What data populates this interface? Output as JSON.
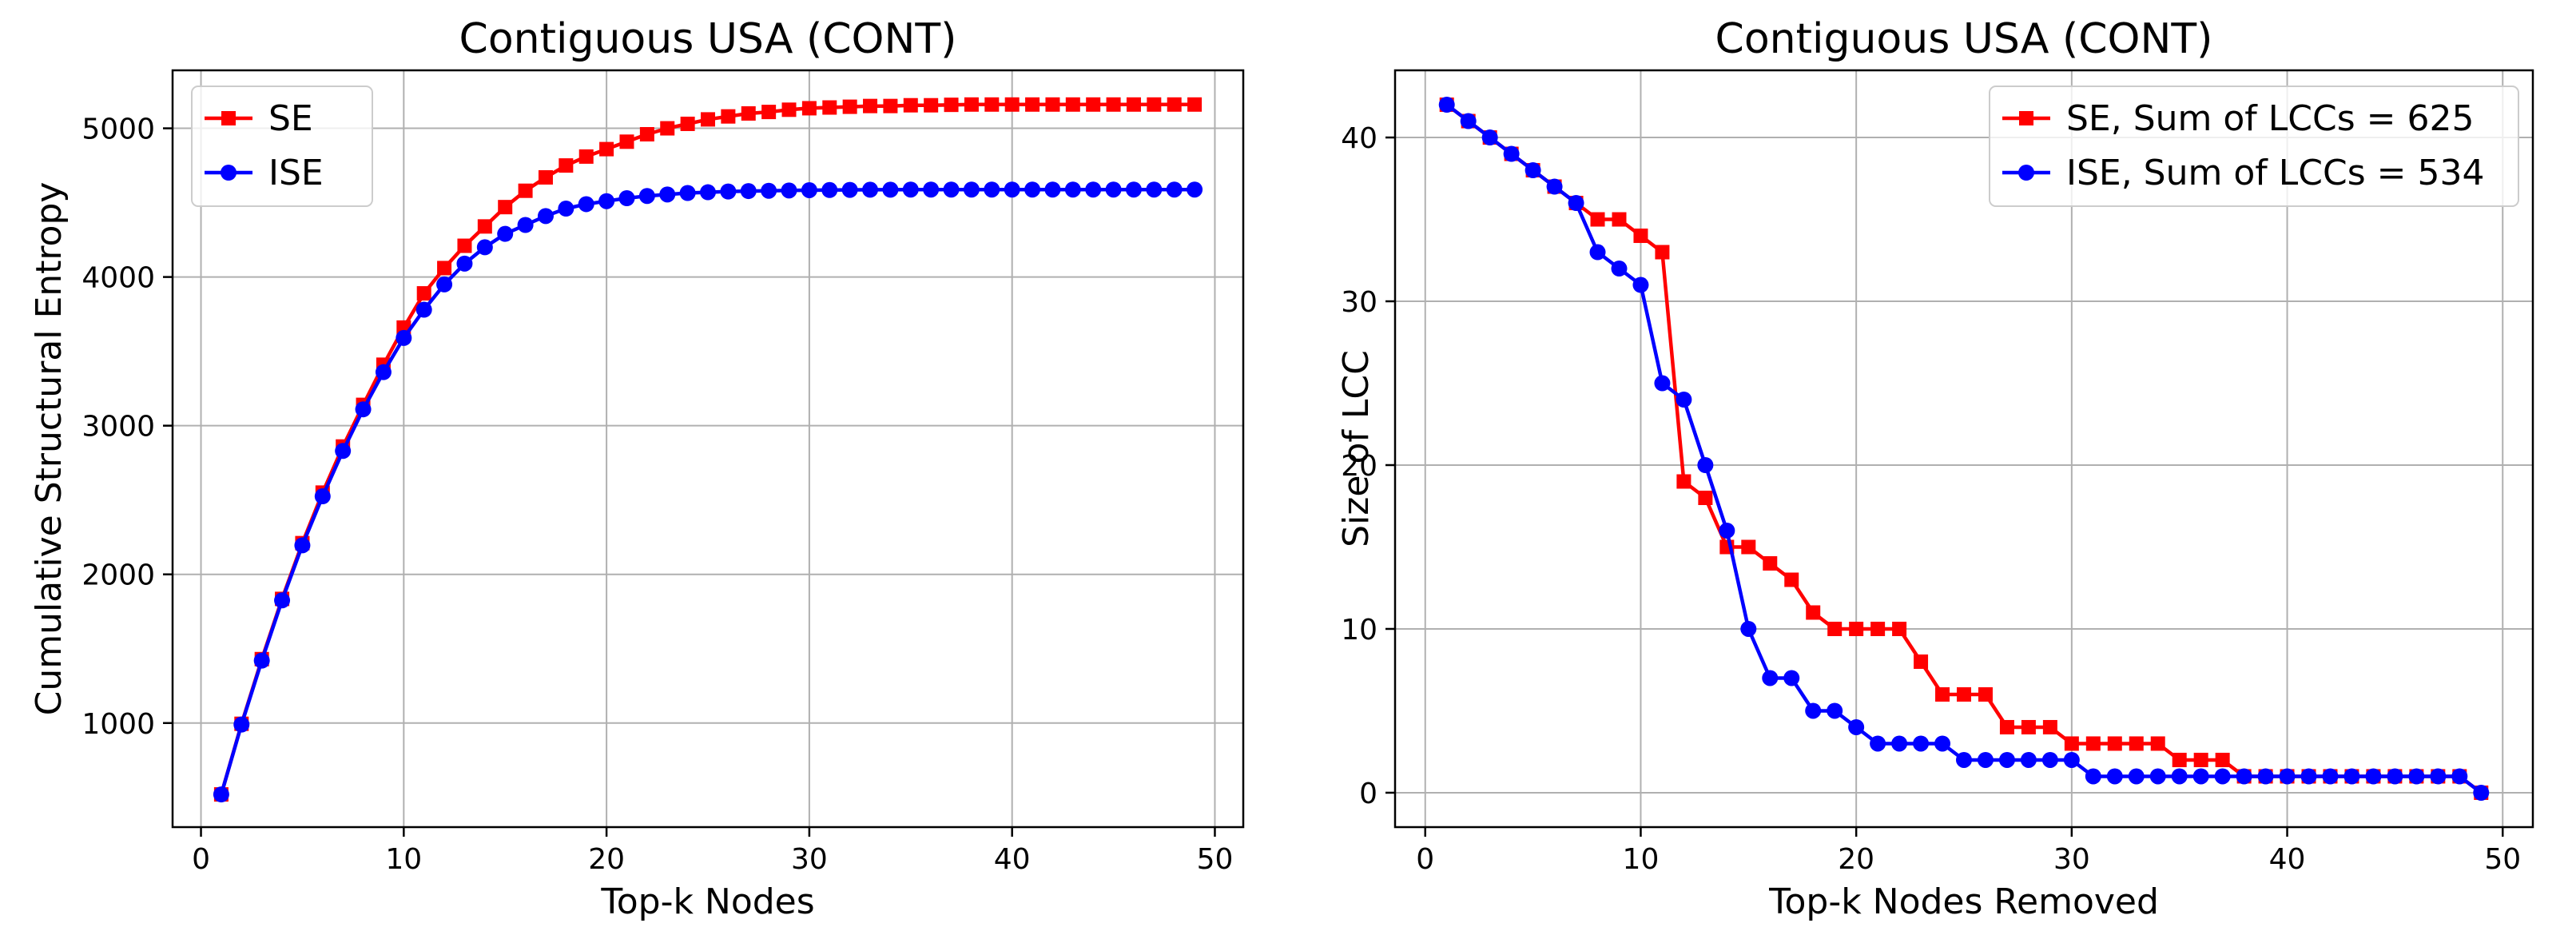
{
  "chart_data": [
    {
      "type": "line",
      "title": "Contiguous USA (CONT)",
      "xlabel": "Top-k Nodes",
      "ylabel": "Cumulative Structural Entropy",
      "xlim": [
        -1.4,
        51.4
      ],
      "ylim": [
        300,
        5390
      ],
      "xticks": [
        "0",
        "10",
        "20",
        "30",
        "40",
        "50"
      ],
      "yticks": [
        "1000",
        "2000",
        "3000",
        "4000",
        "5000"
      ],
      "grid": true,
      "legend_position": "top-left",
      "x": [
        1,
        2,
        3,
        4,
        5,
        6,
        7,
        8,
        9,
        10,
        11,
        12,
        13,
        14,
        15,
        16,
        17,
        18,
        19,
        20,
        21,
        22,
        23,
        24,
        25,
        26,
        27,
        28,
        29,
        30,
        31,
        32,
        33,
        34,
        35,
        36,
        37,
        38,
        39,
        40,
        41,
        42,
        43,
        44,
        45,
        46,
        47,
        48,
        49
      ],
      "series": [
        {
          "name": "SE",
          "color": "#ff0000",
          "marker": "square",
          "values": [
            520,
            995,
            1430,
            1835,
            2210,
            2550,
            2860,
            3140,
            3410,
            3660,
            3890,
            4060,
            4210,
            4340,
            4470,
            4580,
            4670,
            4750,
            4810,
            4860,
            4910,
            4960,
            5000,
            5030,
            5060,
            5080,
            5100,
            5110,
            5125,
            5135,
            5140,
            5145,
            5150,
            5150,
            5155,
            5155,
            5158,
            5160,
            5160,
            5160,
            5160,
            5160,
            5160,
            5160,
            5160,
            5160,
            5160,
            5160,
            5160
          ]
        },
        {
          "name": "ISE",
          "color": "#0000ff",
          "marker": "circle",
          "values": [
            520,
            990,
            1420,
            1825,
            2195,
            2525,
            2830,
            3110,
            3360,
            3590,
            3780,
            3950,
            4090,
            4200,
            4290,
            4350,
            4410,
            4460,
            4490,
            4510,
            4530,
            4545,
            4555,
            4565,
            4570,
            4575,
            4578,
            4580,
            4582,
            4584,
            4585,
            4586,
            4587,
            4587,
            4588,
            4588,
            4588,
            4588,
            4588,
            4588,
            4588,
            4588,
            4588,
            4588,
            4588,
            4588,
            4588,
            4588,
            4588
          ]
        }
      ]
    },
    {
      "type": "line",
      "title": "Contiguous USA (CONT)",
      "xlabel": "Top-k Nodes Removed",
      "ylabel": "Size of LCC",
      "xlim": [
        -1.4,
        51.4
      ],
      "ylim": [
        -2.1,
        44.1
      ],
      "xticks": [
        "0",
        "10",
        "20",
        "30",
        "40",
        "50"
      ],
      "yticks": [
        "0",
        "10",
        "20",
        "30",
        "40"
      ],
      "grid": true,
      "legend_position": "top-right",
      "x": [
        1,
        2,
        3,
        4,
        5,
        6,
        7,
        8,
        9,
        10,
        11,
        12,
        13,
        14,
        15,
        16,
        17,
        18,
        19,
        20,
        21,
        22,
        23,
        24,
        25,
        26,
        27,
        28,
        29,
        30,
        31,
        32,
        33,
        34,
        35,
        36,
        37,
        38,
        39,
        40,
        41,
        42,
        43,
        44,
        45,
        46,
        47,
        48,
        49
      ],
      "series": [
        {
          "name": "SE,  Sum of LCCs = 625",
          "color": "#ff0000",
          "marker": "square",
          "values": [
            42,
            41,
            40,
            39,
            38,
            37,
            36,
            35,
            35,
            34,
            33,
            19,
            18,
            15,
            15,
            14,
            13,
            11,
            10,
            10,
            10,
            10,
            8,
            6,
            6,
            6,
            4,
            4,
            4,
            3,
            3,
            3,
            3,
            3,
            2,
            2,
            2,
            1,
            1,
            1,
            1,
            1,
            1,
            1,
            1,
            1,
            1,
            1,
            0
          ]
        },
        {
          "name": "ISE, Sum of LCCs = 534",
          "color": "#0000ff",
          "marker": "circle",
          "values": [
            42,
            41,
            40,
            39,
            38,
            37,
            36,
            33,
            32,
            31,
            25,
            24,
            20,
            16,
            10,
            7,
            7,
            5,
            5,
            4,
            3,
            3,
            3,
            3,
            2,
            2,
            2,
            2,
            2,
            2,
            1,
            1,
            1,
            1,
            1,
            1,
            1,
            1,
            1,
            1,
            1,
            1,
            1,
            1,
            1,
            1,
            1,
            1,
            0
          ]
        }
      ]
    }
  ]
}
